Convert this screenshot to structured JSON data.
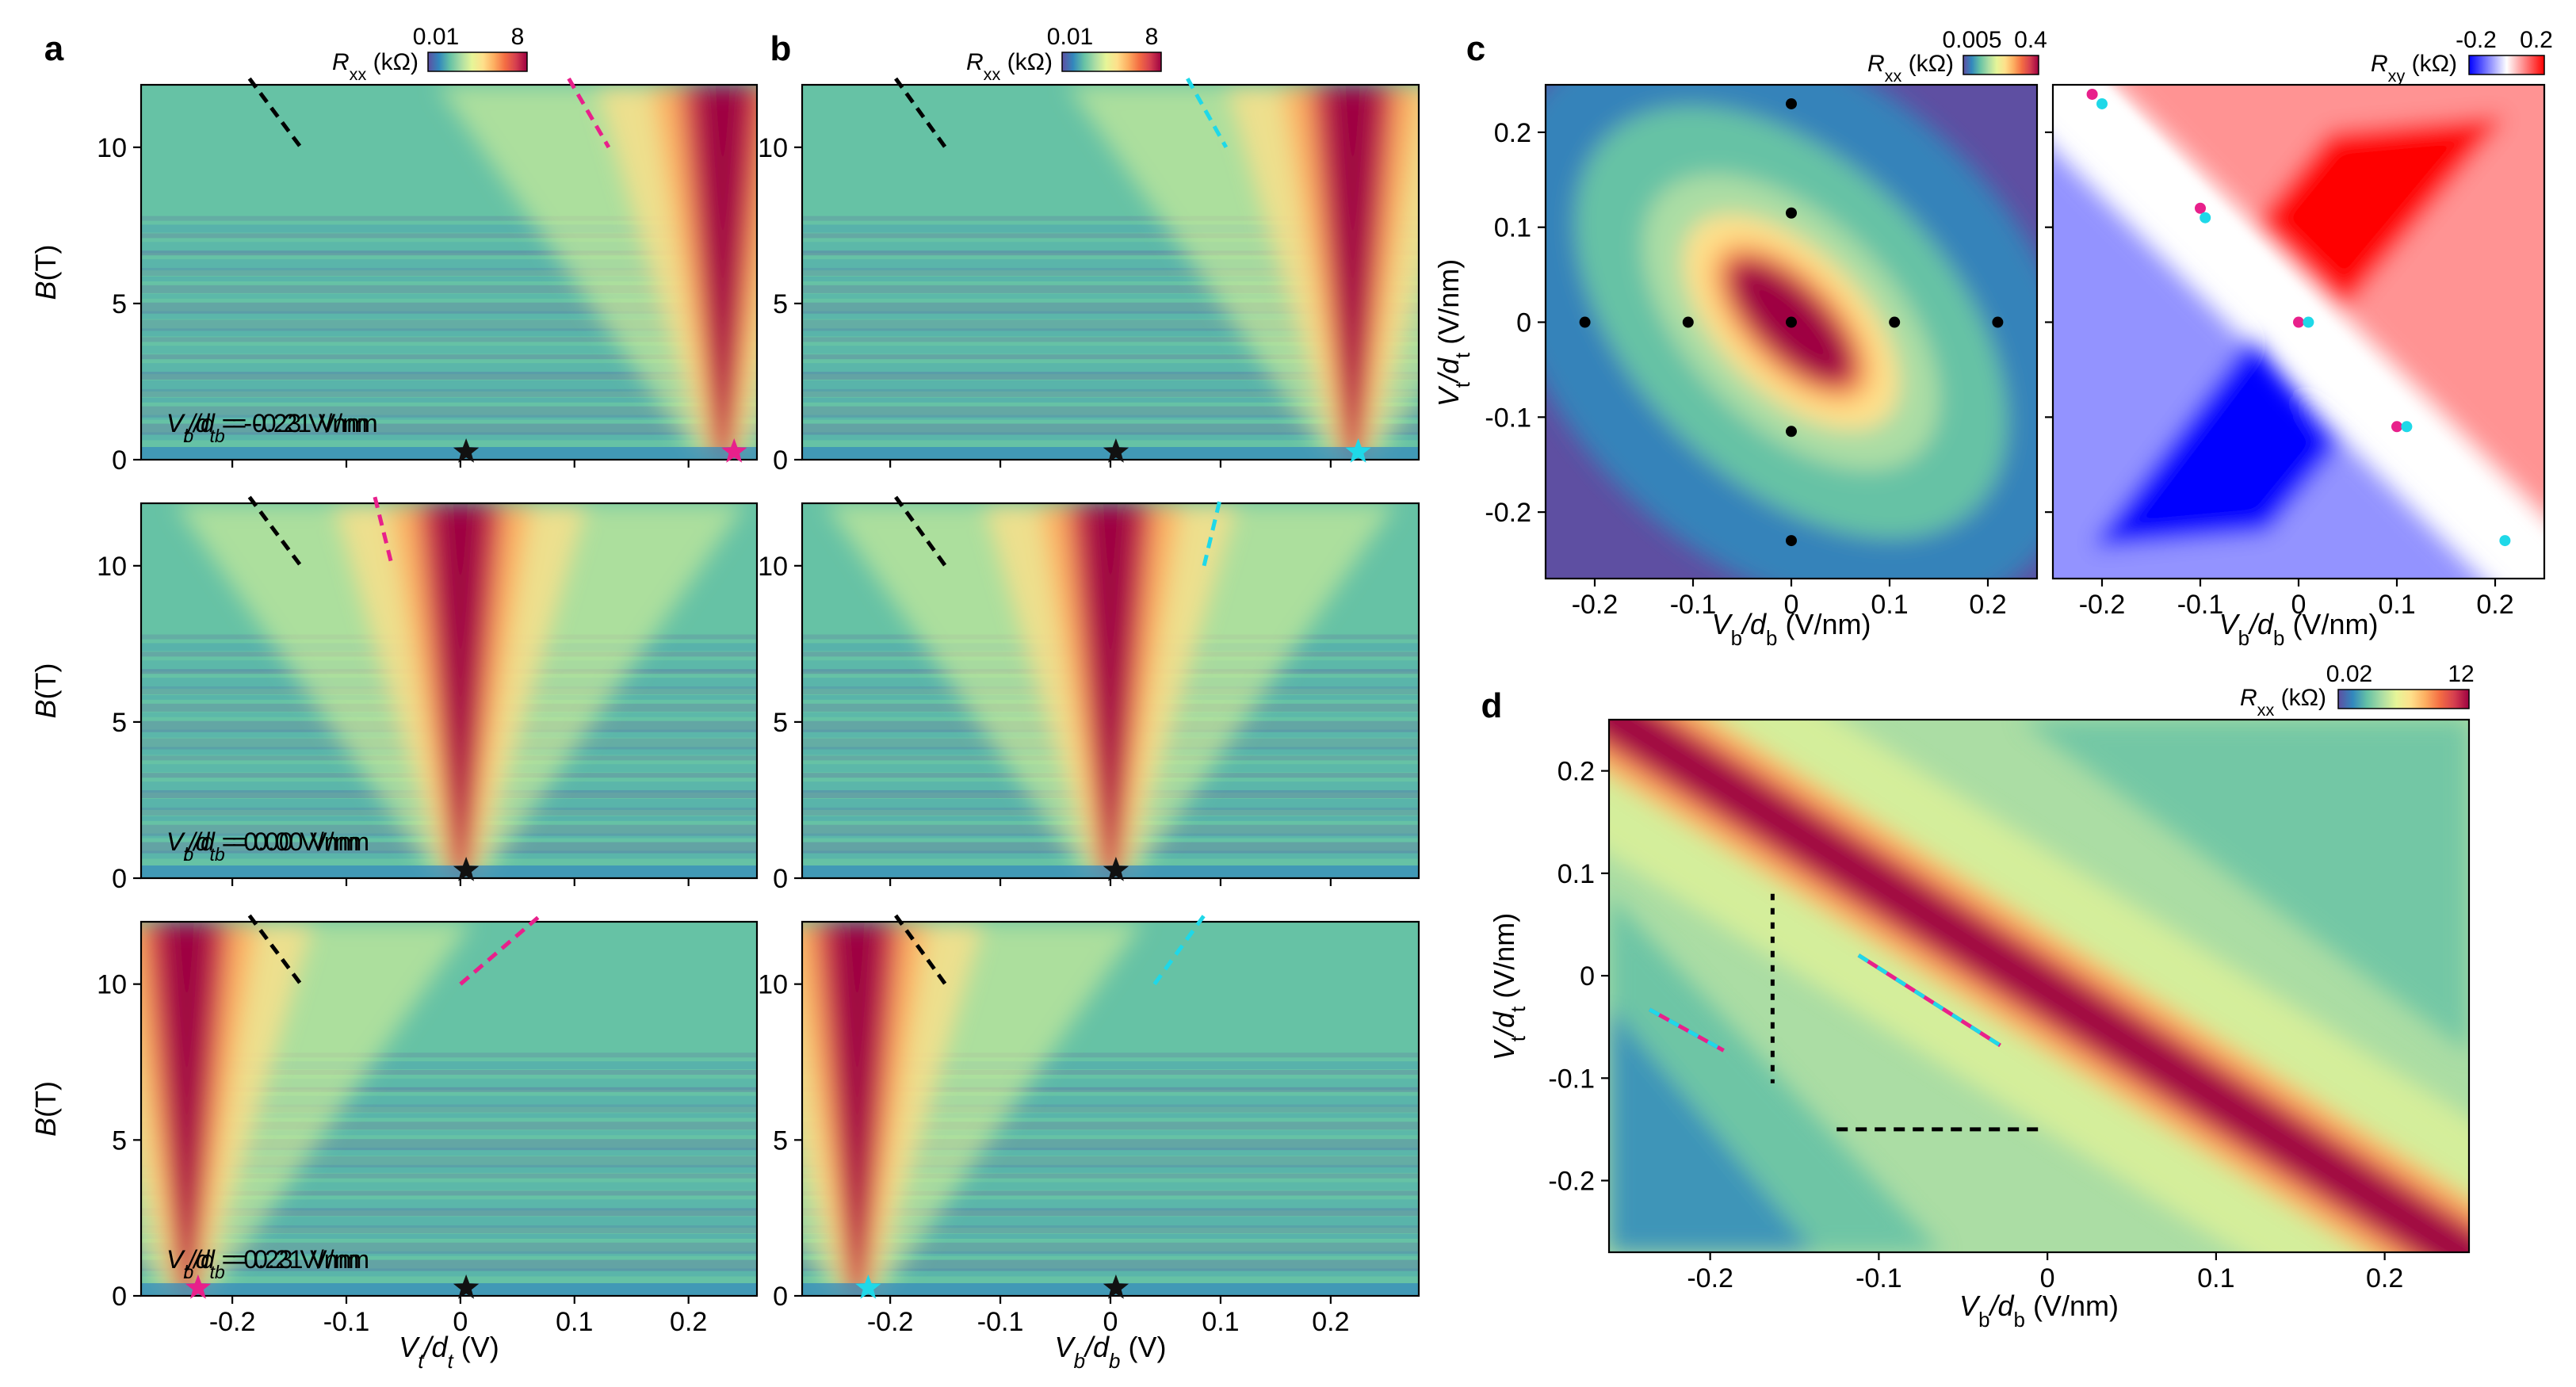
{
  "colors": {
    "colormap_spectral_r": [
      "#5e4fa2",
      "#3288bd",
      "#66c2a5",
      "#abdda4",
      "#e6f598",
      "#fee08b",
      "#fdae61",
      "#f46d43",
      "#d53e4f",
      "#9e0142"
    ],
    "colormap_bwr": [
      "#0000ff",
      "#ffffff",
      "#ff0000"
    ],
    "line_black": "#000000",
    "line_magenta": "#e8208b",
    "line_cyan": "#1fd8e8",
    "star_black": "#111111",
    "star_magenta": "#e8208b",
    "star_cyan": "#1fd8e8"
  },
  "panels": {
    "a": {
      "letter": "a",
      "colorbar": {
        "label": "R",
        "sub": "xx",
        "unit": " (kΩ)",
        "min": "0.01",
        "max": "8"
      },
      "xaxis_label_main": "V",
      "xaxis_label_sub": "t",
      "xaxis_label_den": "/d",
      "xaxis_label_den_sub": "t",
      "xaxis_label_unit": " (V)",
      "xticks": [
        "-0.2",
        "-0.1",
        "0",
        "0.1",
        "0.2"
      ]
    },
    "b": {
      "letter": "b",
      "colorbar": {
        "label": "R",
        "sub": "xx",
        "unit": " (kΩ)",
        "min": "0.01",
        "max": "8"
      },
      "xaxis_label_main": "V",
      "xaxis_label_sub": "b",
      "xaxis_label_den": "/d",
      "xaxis_label_den_sub": "b",
      "xaxis_label_unit": " (V)",
      "xticks": [
        "-0.2",
        "-0.1",
        "0",
        "0.1",
        "0.2"
      ]
    },
    "c": {
      "letter": "c",
      "colorbar_left": {
        "label": "R",
        "sub": "xx",
        "unit": " (kΩ)",
        "min": "0.005",
        "max": "0.4"
      },
      "colorbar_right": {
        "label": "R",
        "sub": "xy",
        "unit": " (kΩ)",
        "min": "-0.2",
        "max": "0.2"
      },
      "xlabel": "Vb/db (V/nm)",
      "ylabel": "Vt/dt (V/nm)",
      "xticks": [
        "-0.2",
        "-0.1",
        "0",
        "0.1",
        "0.2"
      ],
      "yticks": [
        "0.2",
        "0.1",
        "0",
        "-0.1",
        "-0.2"
      ]
    },
    "d": {
      "letter": "d",
      "colorbar": {
        "label": "R",
        "sub": "xx",
        "unit": " (kΩ)",
        "min": "0.02",
        "max": "12"
      },
      "xlabel": "Vb/db (V/nm)",
      "ylabel": "Vt/dt (V/nm)",
      "xticks": [
        "-0.2",
        "-0.1",
        "0",
        "0.1",
        "0.2"
      ],
      "yticks": [
        "0.2",
        "0.1",
        "0",
        "-0.1",
        "-0.2"
      ]
    }
  },
  "ylabel_B": "B(T)",
  "ab_yticks": [
    "10",
    "5",
    "0"
  ],
  "row_annotations_a": [
    "-0.21 V/nm",
    "0.00 V/nm",
    "0.21 V/nm"
  ],
  "row_annotations_b": [
    "-0.23 V/nm",
    "0.00 V/nm",
    "0.23 V/nm"
  ],
  "chart_data": [
    {
      "type": "heatmap",
      "panel": "a",
      "title": "",
      "xlabel": "Vt/dt (V)",
      "ylabel": "B(T)",
      "xlim": [
        -0.28,
        0.26
      ],
      "ylim": [
        0,
        12
      ],
      "colorbar": {
        "quantity": "Rxx (kΩ)",
        "range": [
          0.01,
          8
        ]
      },
      "subpanels": [
        {
          "annotation": "Vb/db = -0.21 V/nm",
          "peak_center_x": 0.23,
          "stars": [
            {
              "x": 0.005,
              "y": 0.25,
              "color": "black"
            },
            {
              "x": 0.24,
              "y": 0.25,
              "color": "magenta"
            }
          ],
          "lines": [
            {
              "color": "black",
              "x": [
                -0.185,
                -0.14
              ],
              "y": [
                12.2,
                10.0
              ]
            },
            {
              "color": "magenta",
              "x": [
                0.095,
                0.13
              ],
              "y": [
                12.2,
                10.0
              ]
            }
          ]
        },
        {
          "annotation": "Vb/db = 0.00 V/nm",
          "peak_center_x": 0.0,
          "stars": [
            {
              "x": 0.005,
              "y": 0.25,
              "color": "black"
            }
          ],
          "lines": [
            {
              "color": "black",
              "x": [
                -0.185,
                -0.14
              ],
              "y": [
                12.2,
                10.0
              ]
            },
            {
              "color": "magenta",
              "x": [
                -0.075,
                -0.06
              ],
              "y": [
                12.2,
                10.0
              ]
            }
          ]
        },
        {
          "annotation": "Vb/db = 0.21 V/nm",
          "peak_center_x": -0.24,
          "stars": [
            {
              "x": 0.005,
              "y": 0.25,
              "color": "black"
            },
            {
              "x": -0.23,
              "y": 0.25,
              "color": "magenta"
            }
          ],
          "lines": [
            {
              "color": "black",
              "x": [
                -0.185,
                -0.14
              ],
              "y": [
                12.2,
                10.0
              ]
            },
            {
              "color": "magenta",
              "x": [
                0.0,
                0.07
              ],
              "y": [
                10.0,
                12.2
              ]
            }
          ]
        }
      ]
    },
    {
      "type": "heatmap",
      "panel": "b",
      "title": "",
      "xlabel": "Vb/db (V)",
      "ylabel": "B(T)",
      "xlim": [
        -0.28,
        0.28
      ],
      "ylim": [
        0,
        12
      ],
      "colorbar": {
        "quantity": "Rxx (kΩ)",
        "range": [
          0.01,
          8
        ]
      },
      "subpanels": [
        {
          "annotation": "Vt/dt = -0.23 V/nm",
          "peak_center_x": 0.22,
          "stars": [
            {
              "x": 0.005,
              "y": 0.25,
              "color": "black"
            },
            {
              "x": 0.225,
              "y": 0.25,
              "color": "cyan"
            }
          ],
          "lines": [
            {
              "color": "black",
              "x": [
                -0.195,
                -0.15
              ],
              "y": [
                12.2,
                10.0
              ]
            },
            {
              "color": "cyan",
              "x": [
                0.07,
                0.105
              ],
              "y": [
                12.2,
                10.0
              ]
            }
          ]
        },
        {
          "annotation": "Vt/dt = 0.00 V/nm",
          "peak_center_x": 0.0,
          "stars": [
            {
              "x": 0.005,
              "y": 0.25,
              "color": "black"
            }
          ],
          "lines": [
            {
              "color": "black",
              "x": [
                -0.195,
                -0.15
              ],
              "y": [
                12.2,
                10.0
              ]
            },
            {
              "color": "cyan",
              "x": [
                0.085,
                0.1
              ],
              "y": [
                10.0,
                12.2
              ]
            }
          ]
        },
        {
          "annotation": "Vt/dt = 0.23 V/nm",
          "peak_center_x": -0.23,
          "stars": [
            {
              "x": 0.005,
              "y": 0.25,
              "color": "black"
            },
            {
              "x": -0.22,
              "y": 0.25,
              "color": "cyan"
            }
          ],
          "lines": [
            {
              "color": "black",
              "x": [
                -0.195,
                -0.15
              ],
              "y": [
                12.2,
                10.0
              ]
            },
            {
              "color": "cyan",
              "x": [
                0.04,
                0.085
              ],
              "y": [
                10.0,
                12.2
              ]
            }
          ]
        }
      ]
    },
    {
      "type": "heatmap",
      "panel": "c-left",
      "title": "",
      "xlabel": "Vb/db (V/nm)",
      "ylabel": "Vt/dt (V/nm)",
      "xlim": [
        -0.25,
        0.25
      ],
      "ylim": [
        -0.27,
        0.25
      ],
      "colorbar": {
        "quantity": "Rxx (kΩ)",
        "range": [
          0.005,
          0.4
        ]
      },
      "points": {
        "x": [
          0.0,
          0.0,
          0.0,
          0.0,
          0.0,
          -0.21,
          -0.105,
          0.105,
          0.21
        ],
        "y": [
          0.23,
          0.115,
          0.0,
          -0.115,
          -0.23,
          0.0,
          0.0,
          0.0,
          0.0
        ],
        "color": "black"
      }
    },
    {
      "type": "heatmap",
      "panel": "c-right",
      "title": "",
      "xlabel": "Vb/db (V/nm)",
      "ylabel": "",
      "xlim": [
        -0.25,
        0.25
      ],
      "ylim": [
        -0.27,
        0.25
      ],
      "colorbar": {
        "quantity": "Rxy (kΩ)",
        "range": [
          -0.2,
          0.2
        ]
      },
      "points_magenta": {
        "x": [
          -0.21,
          -0.1,
          0.0,
          0.1
        ],
        "y": [
          0.24,
          0.12,
          0.0,
          -0.11
        ]
      },
      "points_cyan": {
        "x": [
          -0.2,
          -0.095,
          0.01,
          0.11,
          0.21
        ],
        "y": [
          0.23,
          0.11,
          0.0,
          -0.11,
          -0.23
        ]
      }
    },
    {
      "type": "heatmap",
      "panel": "d",
      "title": "",
      "xlabel": "Vb/db (V/nm)",
      "ylabel": "Vt/dt (V/nm)",
      "xlim": [
        -0.26,
        0.25
      ],
      "ylim": [
        -0.27,
        0.25
      ],
      "colorbar": {
        "quantity": "Rxx (kΩ)",
        "range": [
          0.02,
          12
        ]
      },
      "lines": [
        {
          "color": "black",
          "style": "dotted",
          "x": [
            -0.163,
            -0.163
          ],
          "y": [
            0.08,
            -0.105
          ]
        },
        {
          "color": "black",
          "style": "dashed",
          "x": [
            -0.125,
            -0.005
          ],
          "y": [
            -0.15,
            -0.15
          ]
        },
        {
          "color": "magenta-cyan",
          "style": "dashed",
          "x": [
            -0.112,
            -0.028
          ],
          "y": [
            0.02,
            -0.068
          ]
        },
        {
          "color": "magenta-cyan",
          "style": "dashed",
          "x": [
            -0.236,
            -0.192
          ],
          "y": [
            -0.033,
            -0.073
          ]
        }
      ]
    }
  ]
}
